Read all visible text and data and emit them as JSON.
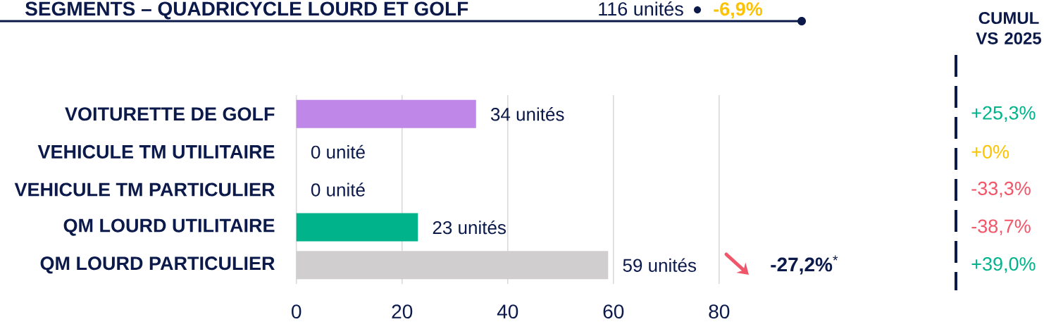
{
  "chart_data": [
    {
      "type": "bar",
      "orientation": "horizontal",
      "title": "SEGMENTS – QUADRICYCLE LOURD ET GOLF",
      "subtitle": "116 unités",
      "categories": [
        "VOITURETTE DE GOLF",
        "VEHICULE TM UTILITAIRE",
        "VEHICULE TM PARTICULIER",
        "QM LOURD UTILITAIRE",
        "QM LOURD PARTICULIER"
      ],
      "values": [
        34,
        0,
        0,
        23,
        59
      ],
      "colors": [
        "#bf88e8",
        "#d0cecf",
        "#d0cecf",
        "#00b38a",
        "#d0cecf"
      ],
      "value_labels": [
        "34 unités",
        "0 unité",
        "0 unité",
        "23 unités",
        "59 unités"
      ],
      "xlim": [
        0,
        80
      ],
      "xticks": [
        0,
        20,
        40,
        60,
        80
      ],
      "grid": "x",
      "annotations": [
        "-6,9%",
        "**-27,2%**$^{*}$"
      ]
    },
    {
      "type": "other",
      "title": "CUMUL VS 2025",
      "categories": [
        null,
        null,
        null,
        null,
        null
      ],
      "value_labels": [
        "+25,3%",
        "+0%",
        "-33,3%",
        "-38,7%",
        "+39,0%"
      ],
      "colors": [
        "#00b38a",
        "#fdc300",
        "#f25669",
        "#f25669",
        "#00b38a"
      ]
    }
  ]
}
